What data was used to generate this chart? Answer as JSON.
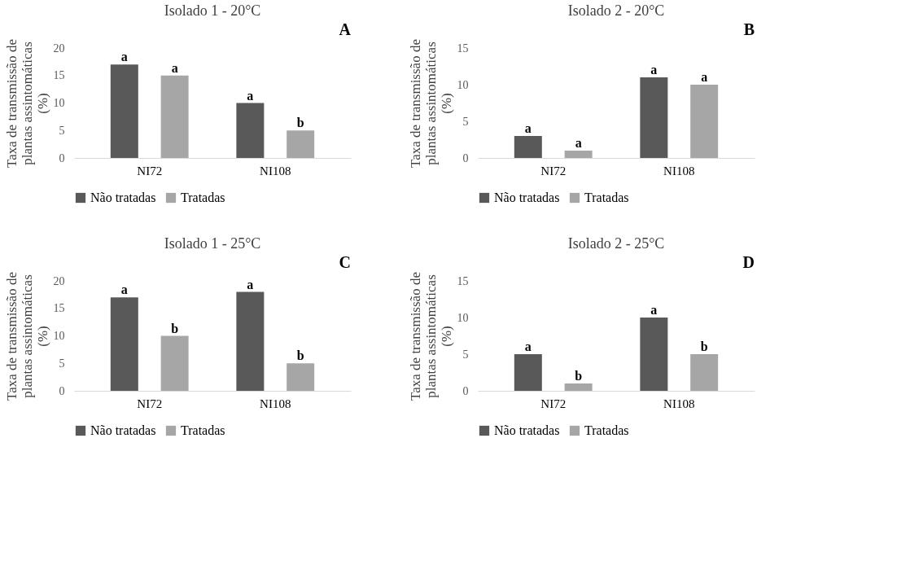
{
  "chart_data": [
    {
      "type": "bar",
      "title": "Isolado 1 - 20°C",
      "ylabel": "Taxa de transmissão de plantas assintomáticas (%)",
      "categories": [
        "NI72",
        "NI108"
      ],
      "ylim": [
        0,
        20
      ],
      "yticks": [
        0,
        5,
        10,
        15,
        20
      ],
      "grid": false,
      "legend": "bottom",
      "annotations": [
        "A"
      ],
      "series": [
        {
          "name": "Não tratadas",
          "color": "#595959",
          "values": [
            17,
            10
          ],
          "value_labels": [
            "a",
            "a"
          ]
        },
        {
          "name": "Tratadas",
          "color": "#a6a6a6",
          "values": [
            15,
            5
          ],
          "value_labels": [
            "a",
            "b"
          ]
        }
      ]
    },
    {
      "type": "bar",
      "title": "Isolado 2 - 20°C",
      "ylabel": "Taxa de transmissão de plantas assintomáticas (%)",
      "categories": [
        "NI72",
        "NI108"
      ],
      "ylim": [
        0,
        15
      ],
      "yticks": [
        0,
        5,
        10,
        15
      ],
      "grid": false,
      "legend": "bottom",
      "annotations": [
        "B"
      ],
      "series": [
        {
          "name": "Não tratadas",
          "color": "#595959",
          "values": [
            3,
            11
          ],
          "value_labels": [
            "a",
            "a"
          ]
        },
        {
          "name": "Tratadas",
          "color": "#a6a6a6",
          "values": [
            1,
            10
          ],
          "value_labels": [
            "a",
            "a"
          ]
        }
      ]
    },
    {
      "type": "bar",
      "title": "Isolado 1 - 25°C",
      "ylabel": "Taxa de transmissão de plantas assintomáticas (%)",
      "categories": [
        "NI72",
        "NI108"
      ],
      "ylim": [
        0,
        20
      ],
      "yticks": [
        0,
        5,
        10,
        15,
        20
      ],
      "grid": false,
      "legend": "bottom",
      "annotations": [
        "C"
      ],
      "series": [
        {
          "name": "Não tratadas",
          "color": "#595959",
          "values": [
            17,
            18
          ],
          "value_labels": [
            "a",
            "a"
          ]
        },
        {
          "name": "Tratadas",
          "color": "#a6a6a6",
          "values": [
            10,
            5
          ],
          "value_labels": [
            "b",
            "b"
          ]
        }
      ]
    },
    {
      "type": "bar",
      "title": "Isolado 2 - 25°C",
      "ylabel": "Taxa de transmissão de plantas assintomáticas (%)",
      "categories": [
        "NI72",
        "NI108"
      ],
      "ylim": [
        0,
        15
      ],
      "yticks": [
        0,
        5,
        10,
        15
      ],
      "grid": false,
      "legend": "bottom",
      "annotations": [
        "D"
      ],
      "series": [
        {
          "name": "Não tratadas",
          "color": "#595959",
          "values": [
            5,
            10
          ],
          "value_labels": [
            "a",
            "a"
          ]
        },
        {
          "name": "Tratadas",
          "color": "#a6a6a6",
          "values": [
            1,
            5
          ],
          "value_labels": [
            "b",
            "b"
          ]
        }
      ]
    }
  ]
}
